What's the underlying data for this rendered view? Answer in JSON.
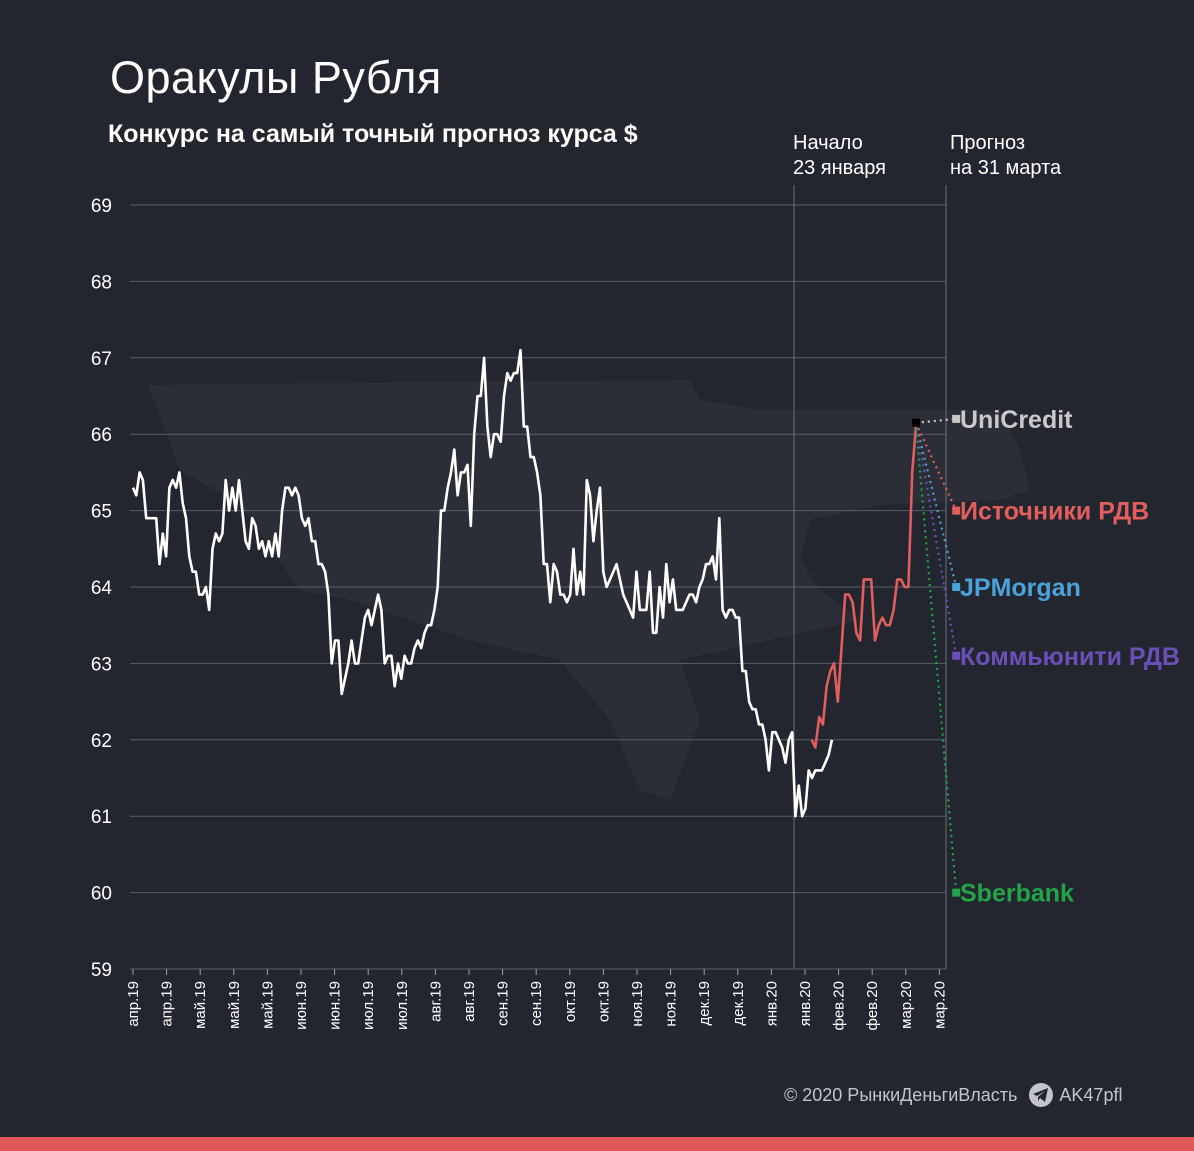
{
  "title": "Оракулы Рубля",
  "subtitle": "Конкурс на самый точный прогноз курса $",
  "annotations": {
    "start_line1": "Начало",
    "start_line2": "23 января",
    "forecast_line1": "Прогноз",
    "forecast_line2": "на 31 марта"
  },
  "footer": {
    "copyright": "© 2020  РынкиДеньгиВласть",
    "channel": "AK47pfl",
    "icon": "telegram-icon"
  },
  "chart_data": {
    "type": "line",
    "ylim": [
      59,
      69
    ],
    "yticks": [
      59,
      60,
      61,
      62,
      63,
      64,
      65,
      66,
      67,
      68,
      69
    ],
    "xtick_labels": [
      "апр.19",
      "апр.19",
      "май.19",
      "май.19",
      "май.19",
      "июн.19",
      "июн.19",
      "июл.19",
      "июл.19",
      "авг.19",
      "авг.19",
      "сен.19",
      "сен.19",
      "окт.19",
      "окт.19",
      "ноя.19",
      "ноя.19",
      "дек.19",
      "дек.19",
      "янв.20",
      "янв.20",
      "фев.20",
      "фев.20",
      "мар.20",
      "мар.20"
    ],
    "grid": true,
    "history": [
      65.3,
      65.2,
      65.5,
      65.4,
      64.9,
      64.9,
      64.9,
      64.9,
      64.3,
      64.7,
      64.4,
      65.3,
      65.4,
      65.3,
      65.5,
      65.1,
      64.9,
      64.4,
      64.2,
      64.2,
      63.9,
      63.9,
      64.0,
      63.7,
      64.5,
      64.7,
      64.6,
      64.7,
      65.4,
      65.0,
      65.3,
      65.0,
      65.4,
      65.0,
      64.6,
      64.5,
      64.9,
      64.8,
      64.5,
      64.6,
      64.4,
      64.6,
      64.4,
      64.7,
      64.4,
      65.0,
      65.3,
      65.3,
      65.2,
      65.3,
      65.2,
      64.9,
      64.8,
      64.9,
      64.6,
      64.6,
      64.3,
      64.3,
      64.2,
      63.9,
      63.0,
      63.3,
      63.3,
      62.6,
      62.8,
      63.0,
      63.3,
      63.0,
      63.0,
      63.3,
      63.6,
      63.7,
      63.5,
      63.7,
      63.9,
      63.7,
      63.0,
      63.1,
      63.1,
      62.7,
      63.0,
      62.8,
      63.1,
      63.0,
      63.0,
      63.2,
      63.3,
      63.2,
      63.4,
      63.5,
      63.5,
      63.7,
      64.0,
      65.0,
      65.0,
      65.3,
      65.5,
      65.8,
      65.2,
      65.5,
      65.5,
      65.6,
      64.8,
      66.0,
      66.5,
      66.5,
      67.0,
      66.1,
      65.7,
      66.0,
      66.0,
      65.9,
      66.5,
      66.8,
      66.7,
      66.8,
      66.8,
      67.1,
      66.1,
      66.1,
      65.7,
      65.7,
      65.5,
      65.2,
      64.3,
      64.3,
      63.8,
      64.3,
      64.2,
      63.9,
      63.9,
      63.8,
      63.9,
      64.5,
      63.9,
      64.2,
      63.9,
      65.4,
      65.2,
      64.6,
      65.0,
      65.3,
      64.2,
      64.0,
      64.1,
      64.2,
      64.3,
      64.1,
      63.9,
      63.8,
      63.7,
      63.6,
      64.2,
      63.7,
      63.7,
      63.7,
      64.2,
      63.4,
      63.4,
      64.0,
      63.6,
      64.3,
      63.8,
      64.1,
      63.7,
      63.7,
      63.7,
      63.8,
      63.9,
      63.9,
      63.8,
      64.0,
      64.1,
      64.3,
      64.3,
      64.4,
      64.1,
      64.9,
      63.7,
      63.6,
      63.7,
      63.7,
      63.6,
      63.6,
      62.9,
      62.9,
      62.5,
      62.4,
      62.4,
      62.2,
      62.2,
      62.0,
      61.6,
      62.1,
      62.1,
      62.0,
      61.9,
      61.7,
      62.0,
      62.1,
      61.0,
      61.4,
      61.0,
      61.1,
      61.6,
      61.5,
      61.6,
      61.6,
      61.6,
      61.7,
      61.8,
      62.0
    ],
    "history_x_range": [
      0,
      20.8
    ],
    "start_point": {
      "index": 20.2
    },
    "series": [
      {
        "name": "",
        "color": "#e05e5e",
        "values": [
          62.0,
          61.9,
          62.3,
          62.2,
          62.7,
          62.9,
          63.0,
          62.5,
          63.2,
          63.9,
          63.9,
          63.8,
          63.4,
          63.3,
          64.1,
          64.1,
          64.1,
          63.3,
          63.5,
          63.6,
          63.5,
          63.5,
          63.7,
          64.1,
          64.1,
          64.0,
          64.0,
          65.5,
          66.1
        ],
        "x_range": [
          20.2,
          23.3
        ]
      }
    ],
    "forecast_origin": {
      "x": 23.3,
      "y": 66.15
    },
    "forecast_x": 24.5,
    "forecasts": [
      {
        "label": "UniCredit",
        "value": 66.2,
        "color": "#c9c9c9"
      },
      {
        "label": "Источники РДВ",
        "value": 65.0,
        "color": "#e05e5e"
      },
      {
        "label": "JPMorgan",
        "value": 64.0,
        "color": "#4aa3d8"
      },
      {
        "label": "Коммьюнити РДВ",
        "value": 63.1,
        "color": "#6b4fb8"
      },
      {
        "label": "Sberbank",
        "value": 60.0,
        "color": "#21a447"
      }
    ]
  }
}
